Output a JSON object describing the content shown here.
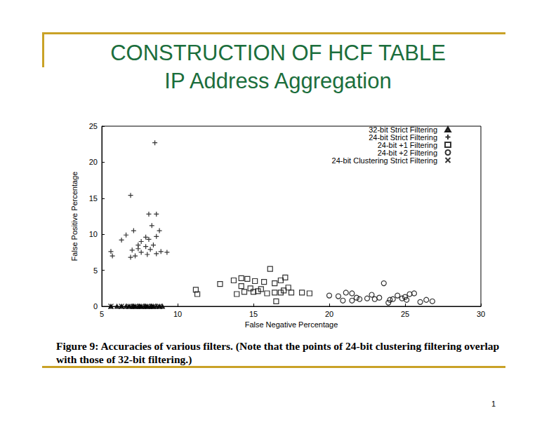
{
  "chart_data": {
    "type": "scatter",
    "title": "CONSTRUCTION OF HCF TABLE",
    "subtitle": "IP Address Aggregation",
    "x_label": "False Negative Percentage",
    "y_label": "False Positive Percentage",
    "annotations": [
      "Figure 9:  Accuracies of various filters.  (Note that the points of 24-bit clustering filtering overlap with those of 32-bit filtering.)",
      "1"
    ],
    "xlim": [
      5,
      30
    ],
    "xticks": [
      5,
      10,
      15,
      20,
      25,
      30
    ],
    "ylim": [
      0,
      25
    ],
    "yticks": [
      0,
      5,
      10,
      15,
      20,
      25
    ],
    "grid": false,
    "legend": "upper right",
    "series": [
      {
        "name": "32-bit Strict Filtering",
        "marker": "triangle",
        "color": "#000000",
        "values": [
          [
            5.6,
            0
          ],
          [
            6.0,
            0
          ],
          [
            6.3,
            0
          ],
          [
            6.6,
            0
          ],
          [
            6.8,
            0
          ],
          [
            7.0,
            0
          ],
          [
            7.1,
            0
          ],
          [
            7.2,
            0
          ],
          [
            7.4,
            0
          ],
          [
            7.5,
            0
          ],
          [
            7.6,
            0
          ],
          [
            7.8,
            0
          ],
          [
            7.9,
            0
          ],
          [
            8.0,
            0
          ],
          [
            8.2,
            0
          ],
          [
            8.3,
            0
          ],
          [
            8.4,
            0
          ],
          [
            8.6,
            0
          ],
          [
            8.8,
            0
          ],
          [
            9.0,
            0
          ]
        ]
      },
      {
        "name": "24-bit Strict Filtering",
        "marker": "plus",
        "color": "#000000",
        "values": [
          [
            8.5,
            22.7
          ],
          [
            6.9,
            15.4
          ],
          [
            8.1,
            12.8
          ],
          [
            8.6,
            12.8
          ],
          [
            8.3,
            11.2
          ],
          [
            8.8,
            10.5
          ],
          [
            7.1,
            10.5
          ],
          [
            6.6,
            9.9
          ],
          [
            6.3,
            9.2
          ],
          [
            7.9,
            9.6
          ],
          [
            7.6,
            9.0
          ],
          [
            8.1,
            9.3
          ],
          [
            8.6,
            9.7
          ],
          [
            7.4,
            8.5
          ],
          [
            7.9,
            8.3
          ],
          [
            8.4,
            8.5
          ],
          [
            7.0,
            7.8
          ],
          [
            7.6,
            7.5
          ],
          [
            8.2,
            7.9
          ],
          [
            8.9,
            7.6
          ],
          [
            9.3,
            7.5
          ],
          [
            5.6,
            7.6
          ],
          [
            5.7,
            7.0
          ],
          [
            6.9,
            6.8
          ],
          [
            7.2,
            7.0
          ],
          [
            8.0,
            7.2
          ],
          [
            7.4,
            8.0
          ],
          [
            8.6,
            7.3
          ]
        ]
      },
      {
        "name": "24-bit +1 Filtering",
        "marker": "square",
        "color": "#000000",
        "values": [
          [
            11.2,
            2.3
          ],
          [
            11.3,
            1.7
          ],
          [
            12.8,
            3.1
          ],
          [
            13.7,
            3.6
          ],
          [
            14.2,
            3.9
          ],
          [
            14.6,
            3.8
          ],
          [
            14.2,
            2.8
          ],
          [
            14.8,
            2.5
          ],
          [
            15.0,
            2.0
          ],
          [
            15.3,
            2.1
          ],
          [
            15.5,
            2.4
          ],
          [
            15.9,
            1.8
          ],
          [
            16.1,
            5.2
          ],
          [
            16.4,
            3.2
          ],
          [
            16.8,
            3.6
          ],
          [
            17.1,
            4.0
          ],
          [
            17.3,
            2.6
          ],
          [
            17.5,
            1.9
          ],
          [
            16.8,
            1.9
          ],
          [
            16.5,
            0.7
          ],
          [
            18.2,
            1.9
          ],
          [
            18.7,
            1.8
          ],
          [
            17.0,
            2.2
          ],
          [
            14.4,
            2.0
          ],
          [
            15.7,
            3.4
          ],
          [
            13.9,
            1.7
          ],
          [
            16.4,
            1.9
          ],
          [
            15.1,
            3.5
          ]
        ]
      },
      {
        "name": "24-bit +2 Filtering",
        "marker": "circle",
        "color": "#000000",
        "values": [
          [
            20.0,
            1.5
          ],
          [
            20.6,
            1.4
          ],
          [
            21.1,
            1.9
          ],
          [
            21.5,
            1.8
          ],
          [
            21.5,
            0.8
          ],
          [
            22.0,
            1.0
          ],
          [
            22.5,
            1.1
          ],
          [
            23.0,
            1.0
          ],
          [
            23.3,
            1.2
          ],
          [
            23.6,
            3.2
          ],
          [
            24.0,
            0.9
          ],
          [
            24.5,
            1.5
          ],
          [
            24.8,
            1.1
          ],
          [
            25.0,
            1.3
          ],
          [
            25.3,
            1.7
          ],
          [
            25.6,
            1.8
          ],
          [
            26.0,
            0.6
          ],
          [
            26.4,
            0.9
          ],
          [
            26.8,
            0.7
          ],
          [
            22.8,
            1.6
          ],
          [
            21.8,
            1.2
          ],
          [
            23.9,
            0.5
          ],
          [
            24.2,
            1.0
          ],
          [
            25.1,
            0.9
          ],
          [
            20.9,
            0.8
          ]
        ]
      },
      {
        "name": "24-bit Clustering Strict Filtering",
        "marker": "x",
        "color": "#000000",
        "values": [
          [
            5.6,
            0
          ],
          [
            6.3,
            0
          ],
          [
            6.8,
            0
          ],
          [
            7.2,
            0
          ],
          [
            7.6,
            0
          ],
          [
            8.0,
            0
          ],
          [
            8.4,
            0
          ],
          [
            8.8,
            0
          ]
        ]
      }
    ]
  }
}
